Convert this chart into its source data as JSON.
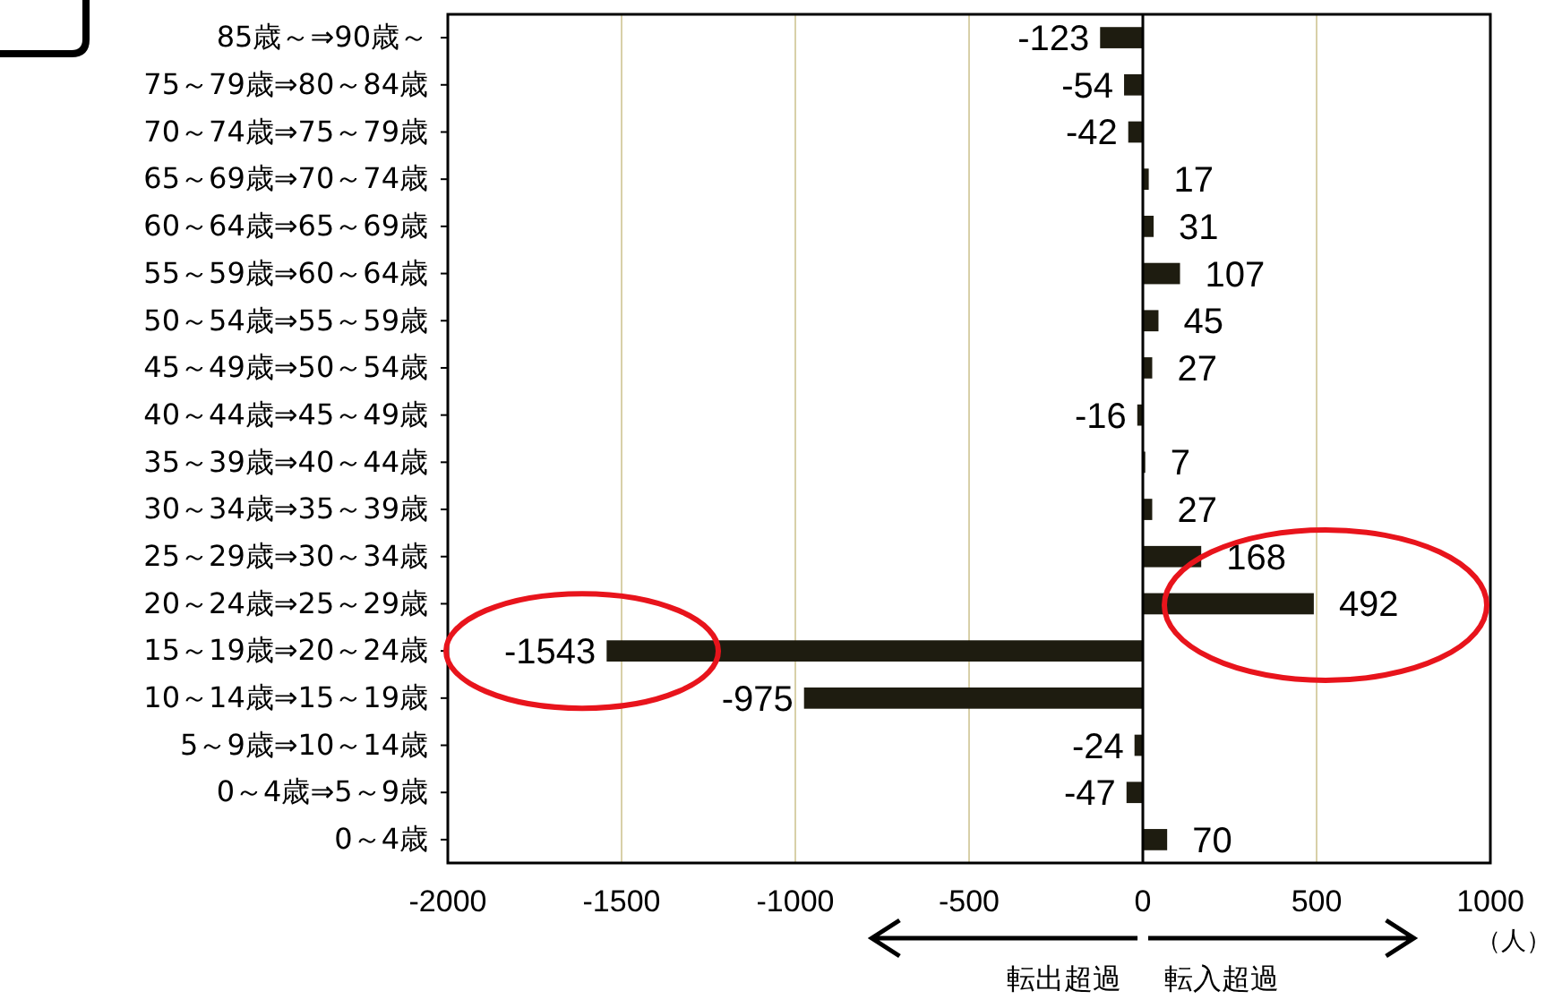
{
  "chart_data": {
    "type": "bar",
    "orientation": "horizontal",
    "categories": [
      "85歳～⇒90歳～",
      "75～79歳⇒80～84歳",
      "70～74歳⇒75～79歳",
      "65～69歳⇒70～74歳",
      "60～64歳⇒65～69歳",
      "55～59歳⇒60～64歳",
      "50～54歳⇒55～59歳",
      "45～49歳⇒50～54歳",
      "40～44歳⇒45～49歳",
      "35～39歳⇒40～44歳",
      "30～34歳⇒35～39歳",
      "25～29歳⇒30～34歳",
      "20～24歳⇒25～29歳",
      "15～19歳⇒20～24歳",
      "10～14歳⇒15～19歳",
      "5～9歳⇒10～14歳",
      "0～4歳⇒5～9歳",
      "0～4歳"
    ],
    "values": [
      -123,
      -54,
      -42,
      17,
      31,
      107,
      45,
      27,
      -16,
      7,
      27,
      168,
      492,
      -1543,
      -975,
      -24,
      -47,
      70
    ],
    "color": "#1e1c10",
    "xlim": [
      -2000,
      1000
    ],
    "xticks": [
      -2000,
      -1500,
      -1000,
      -500,
      0,
      500,
      1000
    ],
    "xlabel": "（人）",
    "grid": "x",
    "data_labels": true,
    "annotations": [
      "転出超過",
      "転入超過"
    ]
  }
}
